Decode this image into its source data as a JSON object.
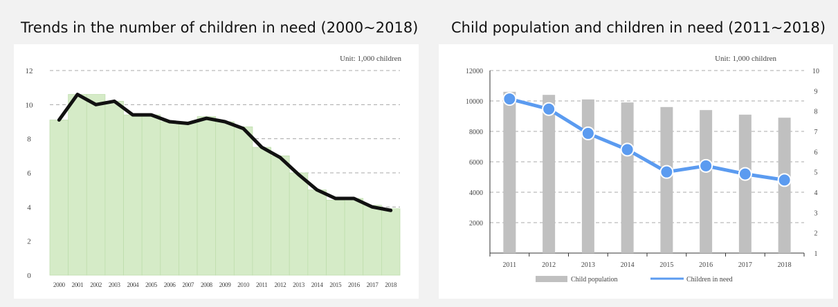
{
  "charts": {
    "left": {
      "title": "Trends in the number of children in need (2000~2018)"
    },
    "right": {
      "title": "Child population and children in need (2011~2018)"
    }
  },
  "chart_data": [
    {
      "type": "area",
      "title": "Trends in the number of children in need (2000~2018)",
      "unit": "Unit: 1,000 children",
      "categories": [
        "2000",
        "2001",
        "2002",
        "2003",
        "2004",
        "2005",
        "2006",
        "2007",
        "2008",
        "2009",
        "2010",
        "2011",
        "2012",
        "2013",
        "2014",
        "2015",
        "2016",
        "2017",
        "2018"
      ],
      "series": [
        {
          "type": "area",
          "color": "#d5ebc7",
          "values": [
            9.1,
            10.6,
            10.6,
            10.2,
            9.4,
            9.4,
            9.0,
            8.9,
            9.3,
            9.0,
            8.7,
            7.5,
            7.0,
            6.0,
            5.0,
            4.4,
            4.5,
            4.1,
            3.9
          ]
        },
        {
          "type": "line",
          "color": "#111111",
          "values": [
            9.1,
            10.6,
            10.0,
            10.2,
            9.4,
            9.4,
            9.0,
            8.9,
            9.2,
            9.0,
            8.6,
            7.5,
            6.9,
            5.9,
            5.0,
            4.5,
            4.5,
            4.0,
            3.8
          ]
        }
      ],
      "ylim": [
        0,
        12
      ],
      "yticks": [
        0,
        2,
        4,
        6,
        8,
        10,
        12
      ],
      "grid": true
    },
    {
      "type": "bar",
      "title": "Child population and children in need (2011~2018)",
      "unit": "Unit: 1,000 children",
      "categories": [
        "2011",
        "2012",
        "2013",
        "2014",
        "2015",
        "2016",
        "2017",
        "2018"
      ],
      "series": [
        {
          "name": "Child population",
          "type": "bar",
          "axis": "left",
          "color": "#c0c0c0",
          "values": [
            10600,
            10400,
            10100,
            9900,
            9600,
            9400,
            9100,
            8900
          ]
        },
        {
          "name": "Children in need",
          "type": "line",
          "axis": "right",
          "color": "#5b9bf0",
          "values": [
            8.6,
            8.1,
            6.9,
            6.1,
            5.0,
            5.3,
            4.9,
            4.6
          ]
        }
      ],
      "ylim_left": [
        0,
        12000
      ],
      "yticks_left": [
        2000,
        4000,
        6000,
        8000,
        10000,
        12000
      ],
      "ylim_right": [
        1,
        10
      ],
      "yticks_right": [
        1,
        2,
        3,
        4,
        5,
        6,
        7,
        8,
        9,
        10
      ],
      "grid": true,
      "legend": "bottom"
    }
  ]
}
